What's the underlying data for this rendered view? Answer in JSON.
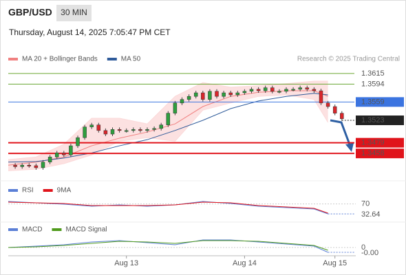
{
  "header": {
    "symbol": "GBP/USD",
    "interval": "30 MIN",
    "timestamp": "Thursday, August 14, 2025 7:05:47 PM CET",
    "credit": "Research © 2025 Trading Central"
  },
  "chart_data": [
    {
      "type": "candlestick",
      "up_color": "#2e9e3e",
      "down_color": "#d9262b",
      "values": [
        1.3435,
        1.3432,
        1.3435,
        1.3434,
        1.343,
        1.3441,
        1.3451,
        1.3459,
        1.3455,
        1.3473,
        1.3489,
        1.351,
        1.3514,
        1.3503,
        1.3496,
        1.3505,
        1.3503,
        1.3503,
        1.3505,
        1.3503,
        1.3505,
        1.3507,
        1.3514,
        1.3537,
        1.3557,
        1.3564,
        1.357,
        1.3577,
        1.3564,
        1.358,
        1.357,
        1.3577,
        1.3573,
        1.3577,
        1.358,
        1.3584,
        1.3581,
        1.3587,
        1.358,
        1.358,
        1.3584,
        1.3584,
        1.3587,
        1.3584,
        1.3581,
        1.3557,
        1.355,
        1.3537,
        1.3526
      ],
      "xlim": [
        0,
        50
      ],
      "ylim": [
        1.3411,
        1.3631
      ],
      "xticks": [
        {
          "value": 17,
          "label": "Aug 13"
        },
        {
          "value": 34,
          "label": "Aug 14"
        },
        {
          "value": 47,
          "label": "Aug 15"
        }
      ],
      "series": [
        {
          "name": "MA 20 + Bollinger Bands",
          "color": "#f08080",
          "band_color": "#fbd9d9",
          "x": [
            0,
            4,
            8,
            12,
            16,
            20,
            24,
            28,
            32,
            36,
            40,
            44,
            46
          ],
          "values": [
            1.3435,
            1.3441,
            1.3451,
            1.3473,
            1.3488,
            1.35,
            1.3516,
            1.355,
            1.357,
            1.3578,
            1.3581,
            1.3581,
            1.357
          ],
          "upper": [
            1.3446,
            1.3451,
            1.3476,
            1.3527,
            1.3527,
            1.3516,
            1.357,
            1.3597,
            1.3588,
            1.3591,
            1.3595,
            1.36,
            1.36
          ],
          "lower": [
            1.3424,
            1.3427,
            1.3438,
            1.3455,
            1.3482,
            1.3489,
            1.3482,
            1.3543,
            1.3557,
            1.357,
            1.3573,
            1.3564,
            1.3519
          ]
        },
        {
          "name": "MA 50",
          "color": "#2f5b9a",
          "x": [
            0,
            4,
            8,
            12,
            16,
            20,
            24,
            28,
            32,
            36,
            40,
            44,
            46
          ],
          "values": [
            1.3441,
            1.3442,
            1.3449,
            1.3459,
            1.3473,
            1.3485,
            1.3503,
            1.3523,
            1.3546,
            1.3561,
            1.357,
            1.3576,
            1.3573
          ]
        }
      ],
      "levels": [
        {
          "value": 1.3615,
          "color": "#6aa632",
          "style": "text"
        },
        {
          "value": 1.3594,
          "color": "#6aa632",
          "style": "text"
        },
        {
          "value": 1.3559,
          "color": "#3b74e0",
          "style": "box"
        },
        {
          "value": 1.3523,
          "color": "#222222",
          "style": "dotted"
        },
        {
          "value": 1.3479,
          "color": "#e0141b",
          "style": "box"
        },
        {
          "value": 1.3458,
          "color": "#e0141b",
          "style": "box"
        }
      ]
    },
    {
      "type": "line",
      "xlim": [
        0,
        50
      ],
      "ylim": [
        15,
        100
      ],
      "yticks": [
        70
      ],
      "series": [
        {
          "name": "RSI",
          "color": "#5b7fd6",
          "x": [
            0,
            4,
            8,
            12,
            16,
            20,
            24,
            28,
            32,
            36,
            40,
            44,
            46
          ],
          "values": [
            79.4,
            74.2,
            69.1,
            61.4,
            66.5,
            61.4,
            66.5,
            79.4,
            71.7,
            61.4,
            56.2,
            51.1,
            32.64
          ]
        },
        {
          "name": "9MA",
          "color": "#e0141b",
          "x": [
            0,
            4,
            8,
            12,
            16,
            20,
            24,
            28,
            32,
            36,
            40,
            44,
            46
          ],
          "values": [
            76.8,
            74.2,
            71.7,
            63.9,
            63.9,
            63.9,
            66.5,
            76.8,
            74.2,
            63.9,
            58.8,
            53.6,
            35.6
          ]
        }
      ]
    },
    {
      "type": "line",
      "xlim": [
        0,
        50
      ],
      "ylim": [
        -0.0015,
        0.0015
      ],
      "yticks": [
        0
      ],
      "series": [
        {
          "name": "MACD",
          "color": "#5b7fd6",
          "x": [
            0,
            4,
            8,
            12,
            16,
            20,
            24,
            28,
            32,
            36,
            40,
            44,
            46
          ],
          "values": [
            0,
            0.0002,
            0.0004,
            0.0008,
            0.001,
            0.0007,
            0.0004,
            0.0011,
            0.0011,
            0.0008,
            0.0005,
            0.0002,
            -0.0007
          ],
          "value_labels": [
            null,
            null,
            null,
            null,
            null,
            null,
            null,
            null,
            null,
            null,
            null,
            null,
            "-0.00"
          ]
        },
        {
          "name": "MACD Signal",
          "color": "#4f9a1c",
          "x": [
            0,
            4,
            8,
            12,
            16,
            20,
            24,
            28,
            32,
            36,
            40,
            44,
            46
          ],
          "values": [
            0,
            0.0001,
            0.0003,
            0.0006,
            0.0009,
            0.0008,
            0.0006,
            0.001,
            0.001,
            0.0009,
            0.0006,
            0.0003,
            -0.0004
          ]
        }
      ]
    }
  ]
}
